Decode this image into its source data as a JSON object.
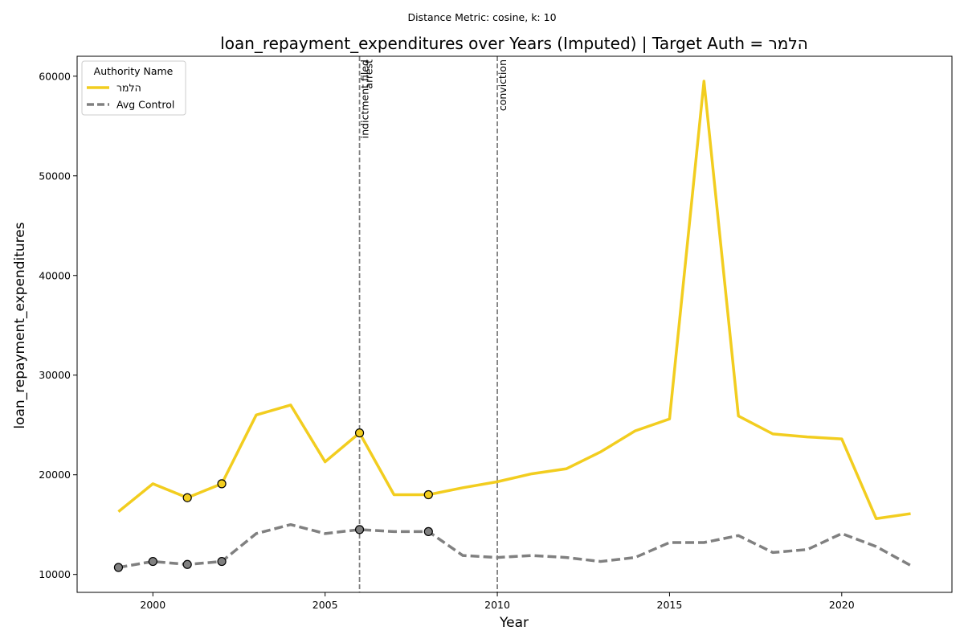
{
  "chart_data": {
    "type": "line",
    "suptitle": "Distance Metric: cosine, k: 10",
    "title": "loan_repayment_expenditures over Years (Imputed) | Target Auth = הלמר",
    "xlabel": "Year",
    "ylabel": "loan_repayment_expenditures",
    "xlim": [
      1997.8,
      2023.2
    ],
    "ylim": [
      8200,
      62000
    ],
    "xticks": [
      2000,
      2005,
      2010,
      2015,
      2020
    ],
    "yticks": [
      10000,
      20000,
      30000,
      40000,
      50000,
      60000
    ],
    "grid": false,
    "legend": {
      "title": "Authority Name",
      "placement": "top-left"
    },
    "series": [
      {
        "name": "הלמר",
        "color": "#f2cd1f",
        "dash": "solid",
        "x": [
          1999,
          2000,
          2001,
          2002,
          2003,
          2004,
          2005,
          2006,
          2007,
          2008,
          2009,
          2010,
          2011,
          2012,
          2013,
          2014,
          2015,
          2016,
          2017,
          2018,
          2019,
          2020,
          2021,
          2022
        ],
        "y": [
          16300,
          19100,
          17700,
          19100,
          26000,
          27000,
          21300,
          24200,
          18000,
          18000,
          18700,
          19300,
          20100,
          20600,
          22300,
          24400,
          25600,
          59500,
          25900,
          24100,
          23800,
          23600,
          15600,
          16100
        ],
        "marked_x": [
          2001,
          2002,
          2006,
          2008
        ]
      },
      {
        "name": "Avg Control",
        "color": "#808080",
        "dash": "dashed",
        "x": [
          1999,
          2000,
          2001,
          2002,
          2003,
          2004,
          2005,
          2006,
          2007,
          2008,
          2009,
          2010,
          2011,
          2012,
          2013,
          2014,
          2015,
          2016,
          2017,
          2018,
          2019,
          2020,
          2021,
          2022
        ],
        "y": [
          10700,
          11300,
          11000,
          11300,
          14100,
          15000,
          14100,
          14500,
          14300,
          14300,
          11900,
          11700,
          11900,
          11700,
          11300,
          11700,
          13200,
          13200,
          13900,
          12200,
          12500,
          14100,
          12800,
          10900
        ],
        "marked_x": [
          1999,
          2000,
          2001,
          2002,
          2006,
          2008
        ]
      }
    ],
    "annotations": [
      {
        "x": 2006,
        "label": "indictment filed"
      },
      {
        "x": 2006,
        "label": "arrest"
      },
      {
        "x": 2010,
        "label": "conviction"
      }
    ]
  }
}
